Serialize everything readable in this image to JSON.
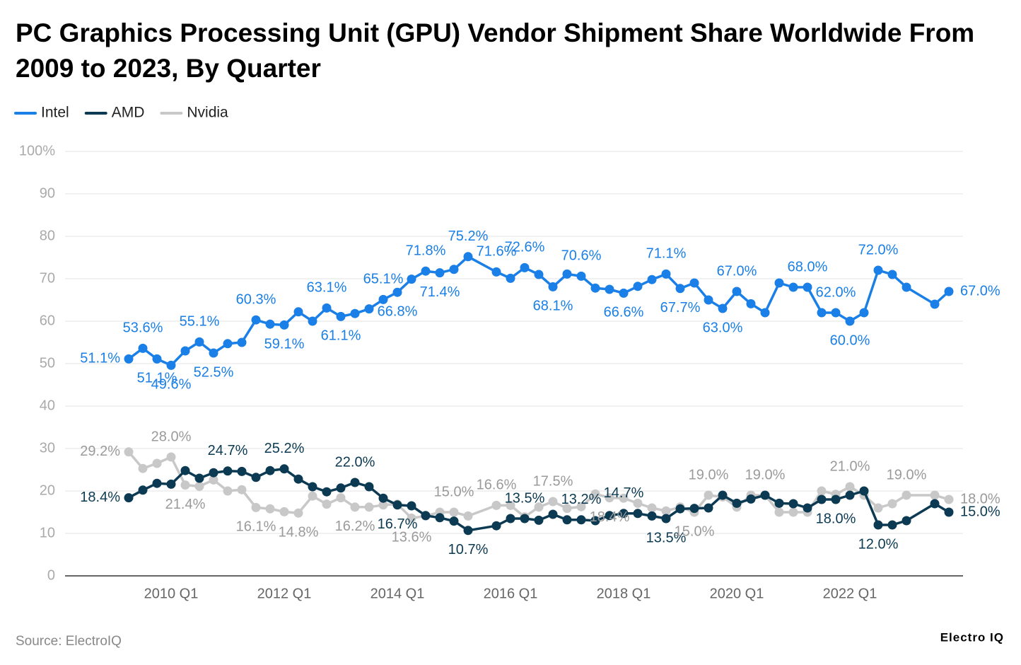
{
  "chart_data": {
    "type": "line",
    "title": "PC Graphics Processing Unit (GPU) Vendor Shipment Share Worldwide From 2009 to 2023, By Quarter",
    "source": "Source: ElectroIQ",
    "brand": "Electro IQ",
    "legend": "top-left",
    "grid": true,
    "connect_gaps": true,
    "ylim": [
      0,
      100
    ],
    "yticks": [
      0,
      10,
      20,
      30,
      40,
      50,
      60,
      70,
      80,
      90,
      {
        "value": 100,
        "label": "100%"
      }
    ],
    "categories": [
      null,
      null,
      null,
      "2010 Q1",
      null,
      null,
      null,
      null,
      null,
      null,
      null,
      "2012 Q1",
      null,
      null,
      null,
      null,
      null,
      null,
      null,
      "2014 Q1",
      null,
      null,
      null,
      null,
      null,
      null,
      null,
      "2016 Q1",
      null,
      null,
      null,
      null,
      null,
      null,
      null,
      "2018 Q1",
      null,
      null,
      null,
      null,
      null,
      null,
      null,
      "2020 Q1",
      null,
      null,
      null,
      null,
      null,
      null,
      null,
      "2022 Q1",
      null,
      null,
      null,
      null,
      null,
      null,
      null
    ],
    "series": [
      {
        "name": "Intel",
        "color": "#1a7fe6",
        "label_color": "#1a7fe6",
        "values": [
          51.1,
          53.6,
          51.1,
          49.6,
          53,
          55.1,
          52.5,
          54.7,
          55,
          60.3,
          59.3,
          59.1,
          62.2,
          60,
          63.1,
          61.1,
          61.8,
          62.9,
          65.1,
          66.8,
          69.9,
          71.8,
          71.4,
          72.2,
          75.2,
          null,
          71.6,
          70.1,
          72.6,
          71,
          68.1,
          71.1,
          70.6,
          67.8,
          67.5,
          66.6,
          68.2,
          69.8,
          71.1,
          67.7,
          69,
          65,
          63,
          67,
          64.1,
          62,
          69,
          68,
          68,
          62,
          62,
          60,
          62,
          72,
          71,
          68,
          null,
          64,
          67
        ],
        "value_labels": [
          "51.1%",
          "53.6%",
          "51.1%",
          "49.6%",
          null,
          "55.1%",
          "52.5%",
          null,
          null,
          "60.3%",
          null,
          "59.1%",
          null,
          null,
          "63.1%",
          "61.1%",
          null,
          null,
          "65.1%",
          "66.8%",
          null,
          "71.8%",
          "71.4%",
          null,
          "75.2%",
          null,
          "71.6%",
          null,
          "72.6%",
          null,
          "68.1%",
          null,
          "70.6%",
          null,
          null,
          "66.6%",
          null,
          null,
          "71.1%",
          "67.7%",
          null,
          null,
          "63.0%",
          "67.0%",
          null,
          null,
          null,
          null,
          "68.0%",
          null,
          "62.0%",
          "60.0%",
          null,
          "72.0%",
          null,
          null,
          null,
          null,
          "67.0%"
        ]
      },
      {
        "name": "AMD",
        "color": "#0b3a52",
        "label_color": "#0b3a52",
        "values": [
          18.4,
          20.2,
          21.8,
          21.6,
          24.8,
          23,
          24.3,
          24.7,
          24.6,
          23.2,
          24.8,
          25.2,
          22.8,
          21,
          19.8,
          20.7,
          22,
          21,
          18.3,
          16.7,
          16.5,
          14.2,
          13.7,
          12.9,
          10.7,
          null,
          11.8,
          13.5,
          13.5,
          13.1,
          14.5,
          13.2,
          13.2,
          13,
          14.2,
          14.7,
          14.7,
          14.1,
          13.5,
          15.8,
          15.9,
          16,
          19,
          17.1,
          18.1,
          19,
          17.1,
          17,
          16,
          18,
          18,
          19,
          20,
          12,
          12,
          13,
          null,
          17,
          15
        ],
        "value_labels": [
          "18.4%",
          null,
          null,
          null,
          null,
          null,
          null,
          "24.7%",
          null,
          null,
          null,
          "25.2%",
          null,
          null,
          null,
          null,
          "22.0%",
          null,
          null,
          "16.7%",
          null,
          null,
          null,
          null,
          "10.7%",
          null,
          null,
          null,
          "13.5%",
          null,
          null,
          null,
          "13.2%",
          null,
          null,
          "14.7%",
          null,
          null,
          "13.5%",
          null,
          null,
          null,
          null,
          null,
          null,
          null,
          null,
          null,
          null,
          null,
          "18.0%",
          null,
          null,
          "12.0%",
          null,
          null,
          null,
          null,
          "15.0%"
        ]
      },
      {
        "name": "Nvidia",
        "color": "#c8c8c8",
        "label_color": "#9a9a9a",
        "values": [
          29.2,
          25.3,
          26.5,
          28,
          21.4,
          21.1,
          22.6,
          20,
          20.3,
          16.1,
          15.8,
          15.1,
          14.8,
          18.8,
          16.9,
          18.4,
          16.2,
          16.2,
          16.7,
          16.9,
          13.6,
          14.1,
          15,
          15,
          14.1,
          null,
          16.6,
          16.6,
          13.9,
          16.2,
          17.5,
          15.9,
          16.3,
          19.3,
          18.4,
          18.3,
          17.1,
          16,
          15.3,
          16.2,
          15,
          19,
          18.6,
          16.2,
          19,
          19,
          15,
          15,
          15,
          20,
          19.2,
          21,
          19,
          16,
          17,
          19,
          null,
          19,
          18
        ],
        "value_labels": [
          "29.2%",
          null,
          null,
          "28.0%",
          "21.4%",
          null,
          null,
          null,
          null,
          "16.1%",
          null,
          null,
          "14.8%",
          null,
          null,
          null,
          "16.2%",
          null,
          null,
          null,
          "13.6%",
          null,
          null,
          "15.0%",
          null,
          null,
          "16.6%",
          null,
          null,
          null,
          "17.5%",
          null,
          null,
          null,
          "18.4%",
          null,
          null,
          null,
          null,
          null,
          "15.0%",
          "19.0%",
          null,
          null,
          null,
          "19.0%",
          null,
          null,
          null,
          null,
          null,
          "21.0%",
          null,
          null,
          null,
          "19.0%",
          null,
          null,
          "18.0%"
        ]
      }
    ]
  }
}
